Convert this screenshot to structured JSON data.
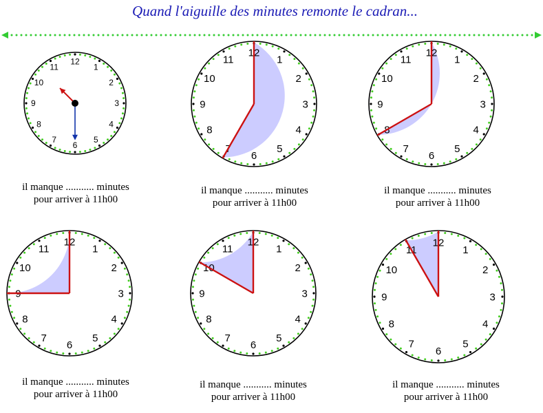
{
  "title": "Quand l'aiguille des minutes remonte le cadran...",
  "colors": {
    "title": "#1a1ab5",
    "divider": "#33cc33",
    "dial_outline": "#000000",
    "minute_marks": "#44cc22",
    "sector_fill": "#ccccff",
    "hand_red": "#cc1111",
    "hand_blue": "#1133aa"
  },
  "clock_numbers": [
    "12",
    "1",
    "2",
    "3",
    "4",
    "5",
    "6",
    "7",
    "8",
    "9",
    "10",
    "11"
  ],
  "exercises": [
    {
      "id": "example",
      "minute_hand_on": 6,
      "hour_hand_on": 10.5,
      "caption_line1": "il manque ........... minutes",
      "caption_line2": "pour arriver à 11h00"
    },
    {
      "id": "clock-2",
      "minute_hand_on": 7,
      "caption_line1": "il manque ........... minutes",
      "caption_line2": "pour arriver à 11h00"
    },
    {
      "id": "clock-3",
      "minute_hand_on": 8,
      "caption_line1": "il manque ........... minutes",
      "caption_line2": "pour arriver à 11h00"
    },
    {
      "id": "clock-4",
      "minute_hand_on": 9,
      "caption_line1": "il manque ........... minutes",
      "caption_line2": "pour arriver à 11h00"
    },
    {
      "id": "clock-5",
      "minute_hand_on": 10,
      "caption_line1": "il manque ........... minutes",
      "caption_line2": "pour arriver à 11h00"
    },
    {
      "id": "clock-6",
      "minute_hand_on": 11,
      "caption_line1": "il manque ........... minutes",
      "caption_line2": "pour arriver à 11h00"
    }
  ]
}
